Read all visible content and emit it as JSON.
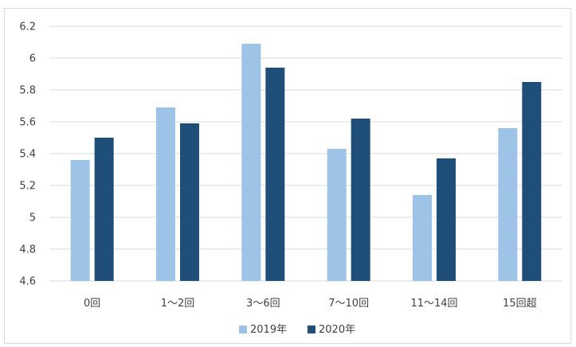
{
  "chart_data": {
    "type": "bar",
    "categories": [
      "0回",
      "1〜2回",
      "3〜6回",
      "7〜10回",
      "11〜14回",
      "15回超"
    ],
    "series": [
      {
        "name": "2019年",
        "color": "#9dc3e6",
        "values": [
          5.36,
          5.69,
          6.09,
          5.43,
          5.14,
          5.56
        ]
      },
      {
        "name": "2020年",
        "color": "#1f4e79",
        "values": [
          5.5,
          5.59,
          5.94,
          5.62,
          5.37,
          5.85
        ]
      }
    ],
    "ylim": [
      4.6,
      6.2
    ],
    "yticks": [
      "4.6",
      "4.8",
      "5",
      "5.2",
      "5.4",
      "5.6",
      "5.8",
      "6",
      "6.2"
    ],
    "grid": true,
    "legend_position": "bottom"
  }
}
